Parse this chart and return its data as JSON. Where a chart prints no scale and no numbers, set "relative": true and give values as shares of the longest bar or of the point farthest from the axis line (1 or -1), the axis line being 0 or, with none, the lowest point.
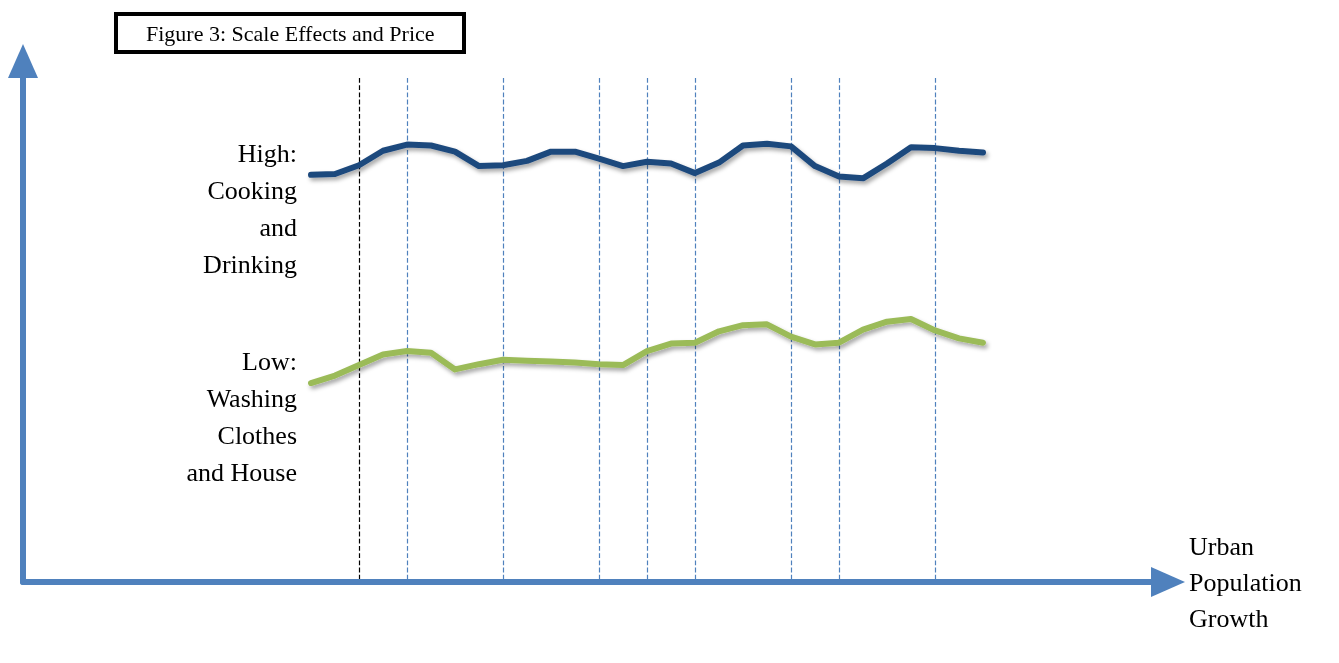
{
  "chart_data": {
    "type": "line",
    "title": "Figure 3: Scale Effects and Price",
    "xlabel": "Urban Population Growth",
    "relative": true,
    "grid": "x",
    "legend": false,
    "marker": "none",
    "line_style": "solid",
    "categories": [
      null,
      null,
      null,
      null,
      null,
      null,
      null,
      null,
      null,
      null,
      null,
      null,
      null,
      null,
      null,
      null,
      null,
      null,
      null,
      null,
      null,
      null,
      null,
      null,
      null,
      null,
      null,
      null,
      null,
      null,
      null,
      null,
      null,
      null,
      null,
      null,
      null,
      null,
      null,
      null,
      null,
      null,
      null,
      null,
      null,
      null,
      null,
      null
    ],
    "series": [
      {
        "name": "High:\nCooking\nand\nDrinking",
        "color": "#1f497d",
        "values": [
          null,
          null,
          null,
          null,
          null,
          null,
          null,
          null,
          null,
          null,
          null,
          null,
          0.929,
          0.931,
          0.951,
          0.984,
          0.998,
          0.996,
          0.982,
          0.949,
          0.951,
          0.961,
          0.982,
          0.982,
          0.966,
          0.949,
          0.959,
          0.955,
          0.933,
          0.957,
          0.996,
          1,
          0.994,
          0.949,
          0.925,
          0.921,
          0.955,
          0.992,
          0.99,
          0.984,
          0.98,
          null,
          null,
          null,
          null,
          null,
          null,
          null
        ]
      },
      {
        "name": "Low:\nWashing\nClothes\nand House",
        "color": "#9bbb59",
        "values": [
          null,
          null,
          null,
          null,
          null,
          null,
          null,
          null,
          null,
          null,
          null,
          null,
          0.454,
          0.471,
          0.495,
          0.519,
          0.527,
          0.523,
          0.485,
          0.497,
          0.507,
          0.505,
          0.503,
          0.501,
          0.497,
          0.495,
          0.527,
          0.544,
          0.546,
          0.572,
          0.586,
          0.588,
          0.56,
          0.542,
          0.546,
          0.576,
          0.594,
          0.6,
          0.574,
          0.556,
          0.546,
          null,
          null,
          null,
          null,
          null,
          null,
          null
        ]
      }
    ]
  }
}
